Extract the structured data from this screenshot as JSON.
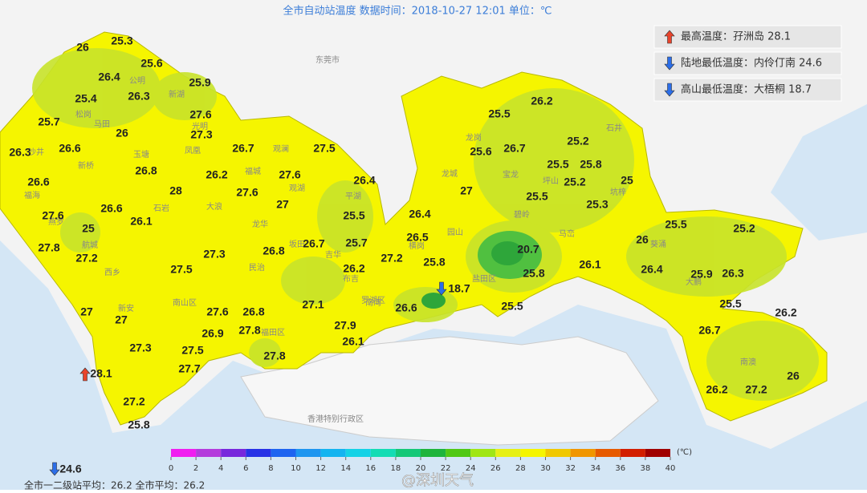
{
  "header": {
    "title": "全市自动站温度  数据时间：2018-10-27 12:01  单位：℃"
  },
  "legend": [
    {
      "label": "最高温度：孖洲岛 28.1",
      "icon": "up"
    },
    {
      "label": "陆地最低温度：内伶仃南 24.6",
      "icon": "down"
    },
    {
      "label": "高山最低温度：大梧桐 18.7",
      "icon": "down"
    }
  ],
  "stations": [
    26,
    25.3,
    26.4,
    25.6,
    25.4,
    26.3,
    25.9,
    25.7,
    27.6,
    26,
    27.3,
    26.3,
    26.6,
    26.7,
    27.5,
    26.8,
    26.2,
    27.6,
    26.4,
    26.6,
    28,
    27.6,
    27,
    27.6,
    26.6,
    26.1,
    25.5,
    25,
    27.8,
    26.7,
    25.7,
    26.8,
    27.3,
    27.2,
    27.2,
    26.2,
    27.5,
    27.1,
    27,
    27.6,
    26.8,
    27,
    26.9,
    27.8,
    27.9,
    26.1,
    27.3,
    27.5,
    27.8,
    27.7,
    28.1,
    27.2,
    25.8,
    24.6,
    26.2,
    25.5,
    25.2,
    25.6,
    26.7,
    25.5,
    25.8,
    25,
    25.2,
    27,
    25.5,
    25.3,
    26.4,
    26.5,
    20.7,
    25.8,
    25.5,
    25.2,
    26,
    26.1,
    26.4,
    25.8,
    25.9,
    26.3,
    18.7,
    26.6,
    25.5,
    25.5,
    26.2,
    26.7,
    26,
    26.2,
    27.2
  ],
  "place_names": [
    "东莞市",
    "香港特别行政区",
    "松岗",
    "公明",
    "新湖",
    "马田",
    "光明",
    "沙井",
    "新桥",
    "玉塘",
    "凤凰",
    "观澜",
    "福城",
    "福海",
    "石岩",
    "大浪",
    "龙华",
    "观湖",
    "平湖",
    "燕罗",
    "航城",
    "西乡",
    "民治",
    "坂田",
    "吉华",
    "布吉",
    "南湾",
    "新安",
    "南山区",
    "福田区",
    "罗湖区",
    "龙岗",
    "龙城",
    "宝龙",
    "坪山",
    "坑梓",
    "石井",
    "马峦",
    "盐田区",
    "葵涌",
    "大鹏",
    "南澳",
    "园山",
    "横岗",
    "碧岭"
  ],
  "color_scale": {
    "ticks": [
      0,
      2,
      4,
      6,
      8,
      10,
      12,
      14,
      16,
      18,
      20,
      22,
      24,
      26,
      28,
      30,
      32,
      34,
      36,
      38,
      40
    ],
    "colors": [
      "#f01ef0",
      "#b43cdc",
      "#7828dc",
      "#2832e6",
      "#1e64f0",
      "#1e96f0",
      "#14b4f0",
      "#14d2e6",
      "#14dcb4",
      "#14c878",
      "#1eb43c",
      "#50c814",
      "#a0e614",
      "#e6f014",
      "#f5f500",
      "#f0c800",
      "#f09600",
      "#e65a00",
      "#d21e00",
      "#a00000"
    ],
    "unit": "(℃)"
  },
  "footer": "全市一二级站平均：26.2    全市平均：26.2",
  "watermark": "@深圳天气"
}
